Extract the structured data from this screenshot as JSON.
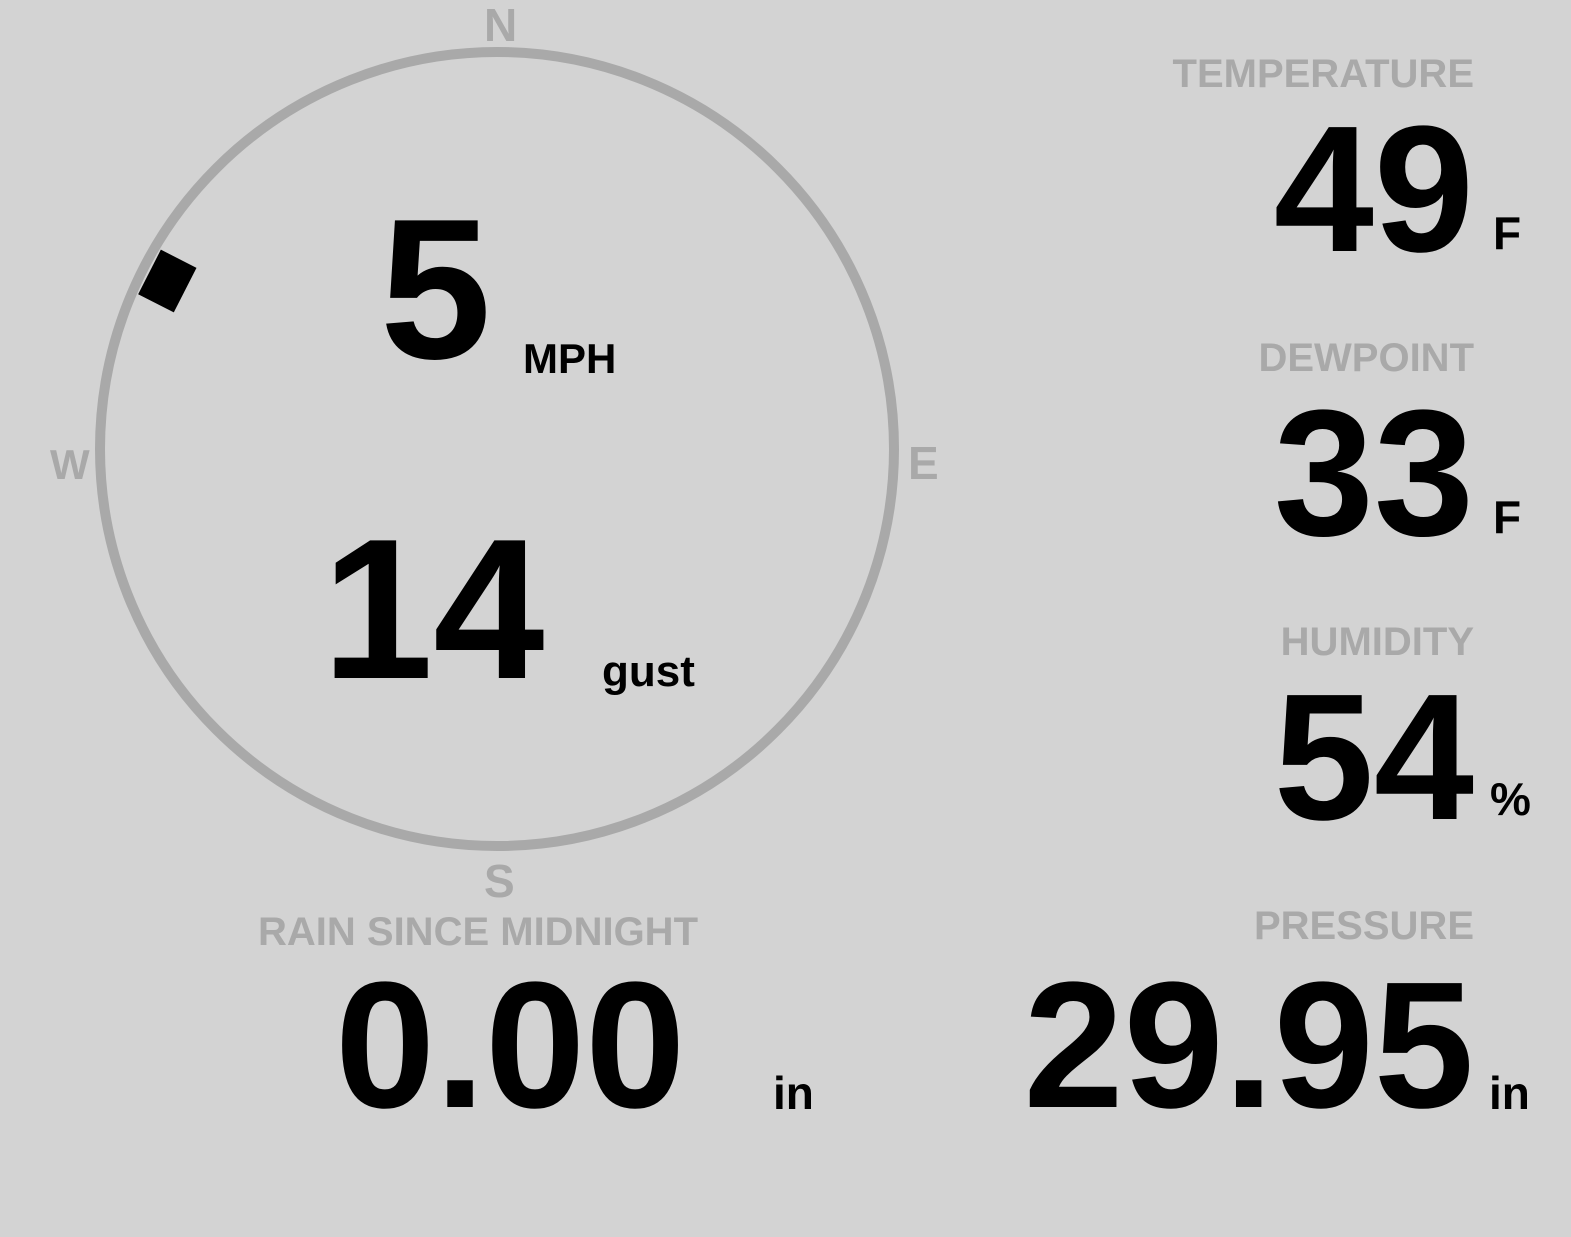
{
  "colors": {
    "background": "#d3d3d3",
    "label": "#a9a9a9",
    "value": "#000000"
  },
  "compass": {
    "n": "N",
    "e": "E",
    "s": "S",
    "w": "W",
    "wind_direction_deg": 297
  },
  "wind": {
    "speed": "5",
    "speed_unit": "MPH",
    "gust": "14",
    "gust_unit": "gust"
  },
  "temperature": {
    "label": "TEMPERATURE",
    "value": "49",
    "unit": "F"
  },
  "dewpoint": {
    "label": "DEWPOINT",
    "value": "33",
    "unit": "F"
  },
  "humidity": {
    "label": "HUMIDITY",
    "value": "54",
    "unit": "%"
  },
  "rain": {
    "label": "RAIN SINCE MIDNIGHT",
    "value": "0.00",
    "unit": "in"
  },
  "pressure": {
    "label": "PRESSURE",
    "value": "29.95",
    "unit": "in"
  }
}
